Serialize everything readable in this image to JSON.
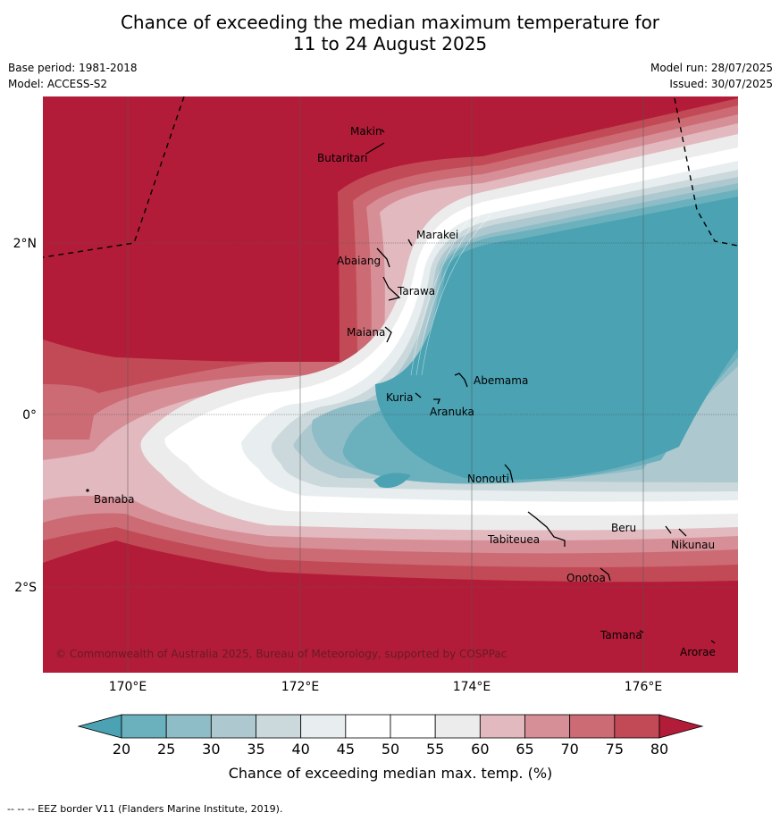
{
  "title_line1": "Chance of exceeding the median maximum temperature for",
  "title_line2": "11 to 24 August 2025",
  "base_period": "Base period: 1981-2018",
  "model": "Model: ACCESS-S2",
  "model_run": "Model run: 28/07/2025",
  "issued": "Issued: 30/07/2025",
  "copyright": "© Commonwealth of Australia 2025, Bureau of Meteorology, supported by COSPPac",
  "footer": "--  --  -- EEZ border V11 (Flanders Marine Institute, 2019).",
  "lon_ticks": [
    "170°E",
    "172°E",
    "174°E",
    "176°E"
  ],
  "lat_ticks": [
    "2°N",
    "0°",
    "2°S"
  ],
  "places": [
    {
      "name": "Makin"
    },
    {
      "name": "Butaritari"
    },
    {
      "name": "Marakei"
    },
    {
      "name": "Abaiang"
    },
    {
      "name": "Tarawa"
    },
    {
      "name": "Maiana"
    },
    {
      "name": "Abemama"
    },
    {
      "name": "Kuria"
    },
    {
      "name": "Aranuka"
    },
    {
      "name": "Nonouti"
    },
    {
      "name": "Banaba"
    },
    {
      "name": "Beru"
    },
    {
      "name": "Tabiteuea"
    },
    {
      "name": "Nikunau"
    },
    {
      "name": "Onotoa"
    },
    {
      "name": "Tamana"
    },
    {
      "name": "Arorae"
    }
  ],
  "colorbar": {
    "label": "Chance of exceeding median max. temp. (%)",
    "ticks": [
      "20",
      "25",
      "30",
      "35",
      "40",
      "45",
      "50",
      "55",
      "60",
      "65",
      "70",
      "75",
      "80"
    ],
    "colors": [
      "#6bb0bd",
      "#8fbdc7",
      "#adc9cf",
      "#ccd9dc",
      "#e8eeef",
      "#ffffff",
      "#ffffff",
      "#ececec",
      "#e2b9bf",
      "#d78f97",
      "#cc6b74",
      "#c24a56"
    ],
    "low_color": "#4aa2b3",
    "high_color": "#b31c38"
  }
}
